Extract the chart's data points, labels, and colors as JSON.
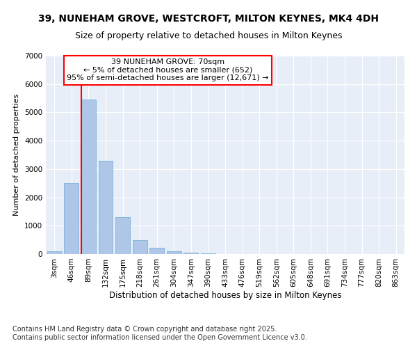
{
  "title_line1": "39, NUNEHAM GROVE, WESTCROFT, MILTON KEYNES, MK4 4DH",
  "title_line2": "Size of property relative to detached houses in Milton Keynes",
  "xlabel": "Distribution of detached houses by size in Milton Keynes",
  "ylabel": "Number of detached properties",
  "categories": [
    "3sqm",
    "46sqm",
    "89sqm",
    "132sqm",
    "175sqm",
    "218sqm",
    "261sqm",
    "304sqm",
    "347sqm",
    "390sqm",
    "433sqm",
    "476sqm",
    "519sqm",
    "562sqm",
    "605sqm",
    "648sqm",
    "691sqm",
    "734sqm",
    "777sqm",
    "820sqm",
    "863sqm"
  ],
  "bar_values": [
    90,
    2500,
    5450,
    3300,
    1300,
    480,
    220,
    110,
    55,
    30,
    0,
    0,
    0,
    0,
    0,
    0,
    0,
    0,
    0,
    0,
    0
  ],
  "bar_color": "#aec6e8",
  "bar_edgecolor": "#6aaad4",
  "vline_x": 1.575,
  "vline_color": "red",
  "annotation_text": "39 NUNEHAM GROVE: 70sqm\n← 5% of detached houses are smaller (652)\n95% of semi-detached houses are larger (12,671) →",
  "annotation_box_color": "white",
  "annotation_box_edgecolor": "red",
  "ylim": [
    0,
    7000
  ],
  "yticks": [
    0,
    1000,
    2000,
    3000,
    4000,
    5000,
    6000,
    7000
  ],
  "bg_color": "#e8eef7",
  "grid_color": "white",
  "footer_text": "Contains HM Land Registry data © Crown copyright and database right 2025.\nContains public sector information licensed under the Open Government Licence v3.0.",
  "title_fontsize": 10,
  "subtitle_fontsize": 9,
  "annotation_fontsize": 8,
  "footer_fontsize": 7,
  "ylabel_fontsize": 8,
  "xlabel_fontsize": 8.5,
  "tick_fontsize": 7.5
}
